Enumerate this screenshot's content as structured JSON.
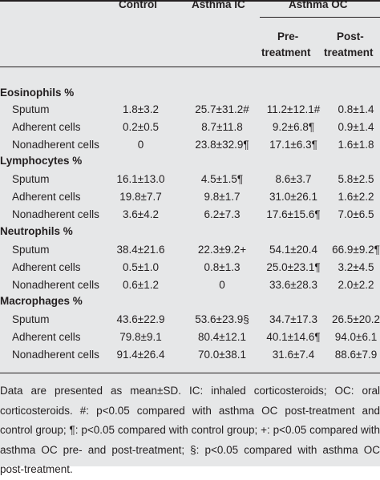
{
  "headers": {
    "control": "Control",
    "asthma_ic": "Asthma IC",
    "asthma_oc": "Asthma OC",
    "pre_line1": "Pre-",
    "pre_line2": "treatment",
    "post_line1": "Post-",
    "post_line2": "treatment"
  },
  "sections": [
    {
      "title": "Eosinophils %",
      "rows": [
        {
          "label": "Sputum",
          "control": "1.8±3.2",
          "ic": "25.7±31.2#",
          "pre": "11.2±12.1#",
          "post": "0.8±1.4"
        },
        {
          "label": "Adherent cells",
          "control": "0.2±0.5",
          "ic": "8.7±11.8",
          "pre": "9.2±6.8¶",
          "post": "0.9±1.4"
        },
        {
          "label": "Nonadherent cells",
          "control": "0",
          "ic": "23.8±32.9¶",
          "pre": "17.1±6.3¶",
          "post": "1.6±1.8"
        }
      ]
    },
    {
      "title": "Lymphocytes %",
      "rows": [
        {
          "label": "Sputum",
          "control": "16.1±13.0",
          "ic": "4.5±1.5¶",
          "pre": "8.6±3.7",
          "post": "5.8±2.5"
        },
        {
          "label": "Adherent cells",
          "control": "19.8±7.7",
          "ic": "9.8±1.7",
          "pre": "31.0±26.1",
          "post": "1.6±2.2"
        },
        {
          "label": "Nonadherent cells",
          "control": "3.6±4.2",
          "ic": "6.2±7.3",
          "pre": "17.6±15.6¶",
          "post": "7.0±6.5"
        }
      ]
    },
    {
      "title": "Neutrophils %",
      "rows": [
        {
          "label": "Sputum",
          "control": "38.4±21.6",
          "ic": "22.3±9.2+",
          "pre": "54.1±20.4",
          "post": "66.9±9.2¶"
        },
        {
          "label": "Adherent cells",
          "control": "0.5±1.0",
          "ic": "0.8±1.3",
          "pre": "25.0±23.1¶",
          "post": "3.2±4.5"
        },
        {
          "label": "Nonadherent cells",
          "control": "0.6±1.2",
          "ic": "0",
          "pre": "33.6±28.3",
          "post": "2.0±2.2"
        }
      ]
    },
    {
      "title": "Macrophages %",
      "rows": [
        {
          "label": "Sputum",
          "control": "43.6±22.9",
          "ic": "53.6±23.9§",
          "pre": "34.7±17.3",
          "post": "26.5±20.2"
        },
        {
          "label": "Adherent cells",
          "control": "79.8±9.1",
          "ic": "80.4±12.1",
          "pre": "40.1±14.6¶",
          "post": "94.0±6.1"
        },
        {
          "label": "Nonadherent cells",
          "control": "91.4±26.4",
          "ic": "70.0±38.1",
          "pre": "31.6±7.4",
          "post": "88.6±7.9"
        }
      ]
    }
  ],
  "footnote": "Data are presented as mean±SD. IC: inhaled corticosteroids; OC: oral corticosteroids. #: p<0.05 compared with asthma OC post-treatment and control group; ¶: p<0.05 compared with control group; +: p<0.05 compared with asthma OC pre- and post-treatment; §: p<0.05 compared with asthma OC post-treatment."
}
